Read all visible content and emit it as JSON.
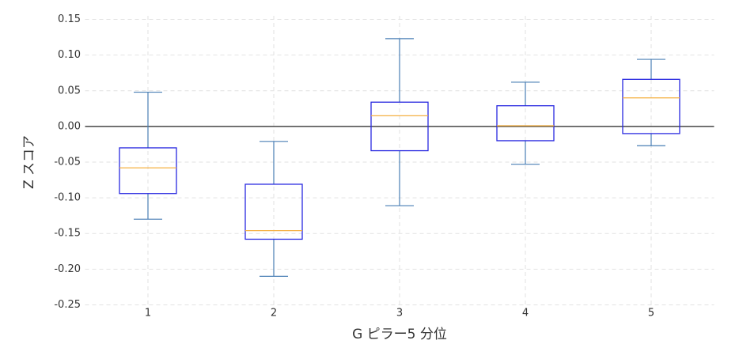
{
  "chart_data": {
    "type": "box",
    "xlabel": "G ピラー5 分位",
    "ylabel": "Z スコア",
    "categories": [
      "1",
      "2",
      "3",
      "4",
      "5"
    ],
    "boxes": [
      {
        "whislo": -0.13,
        "q1": -0.094,
        "med": -0.058,
        "q3": -0.03,
        "whishi": 0.048
      },
      {
        "whislo": -0.21,
        "q1": -0.158,
        "med": -0.146,
        "q3": -0.081,
        "whishi": -0.021
      },
      {
        "whislo": -0.111,
        "q1": -0.034,
        "med": 0.015,
        "q3": 0.034,
        "whishi": 0.123
      },
      {
        "whislo": -0.053,
        "q1": -0.02,
        "med": 0.001,
        "q3": 0.029,
        "whishi": 0.062
      },
      {
        "whislo": -0.027,
        "q1": -0.01,
        "med": 0.04,
        "q3": 0.066,
        "whishi": 0.094
      }
    ],
    "box_color": "#2a2ae0",
    "whisker_color": "#4a7fb5",
    "median_color": "#f5b041",
    "reference_line": 0,
    "reference_color": "#222222",
    "ylim": [
      -0.255,
      0.155
    ],
    "yticks": [
      {
        "value": -0.25,
        "label": "-0.25"
      },
      {
        "value": -0.2,
        "label": "-0.20"
      },
      -0.15,
      {
        "value": -0.1,
        "label": "-0.10"
      },
      -0.05,
      {
        "value": 0,
        "label": "0.00"
      },
      0.05,
      {
        "value": 0.1,
        "label": "0.10"
      },
      0.15
    ],
    "grid": true
  }
}
